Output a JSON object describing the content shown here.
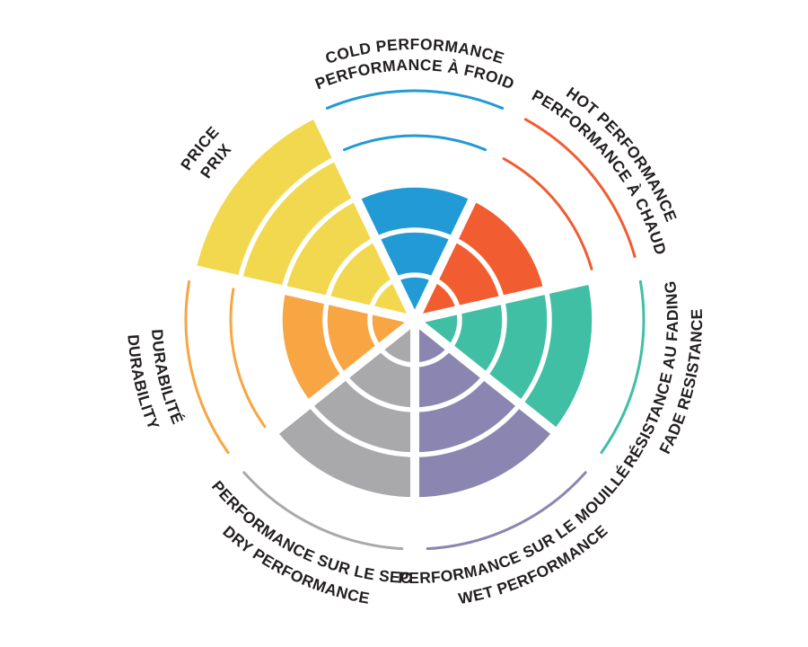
{
  "page": {
    "background": "#FFFFFF",
    "text_color": "#231F20"
  },
  "chart_data": {
    "type": "polar-sector-rating",
    "title": "",
    "rings": 5,
    "order": "clockwise-from-top",
    "grid": "white ring dividers and spokes over filled wedges; thin colored arcs mark unfilled rings",
    "legend_position": "labels curved around wheel, bilingual (English / French)",
    "sectors": [
      {
        "id": "cold",
        "label_en": "COLD PERFORMANCE",
        "label_fr": "PERFORMANCE À FROID",
        "value": 3,
        "max": 5,
        "color": "#229AD5",
        "label_style": "out"
      },
      {
        "id": "hot",
        "label_en": "HOT PERFORMANCE",
        "label_fr": "PERFORMANCE À CHAUD",
        "value": 3,
        "max": 5,
        "color": "#F15C30",
        "label_style": "out"
      },
      {
        "id": "fade",
        "label_en": "FADE RESISTANCE",
        "label_fr": "RÉSISTANCE AU FADING",
        "value": 4,
        "max": 5,
        "color": "#40BFA4",
        "label_style": "in"
      },
      {
        "id": "wet",
        "label_en": "WET PERFORMANCE",
        "label_fr": "PERFORMANCE SUR LE MOUILLÉ",
        "value": 4,
        "max": 5,
        "color": "#8B85B1",
        "label_style": "in"
      },
      {
        "id": "dry",
        "label_en": "DRY PERFORMANCE",
        "label_fr": "PERFORMANCE SUR LE SEC",
        "value": 4,
        "max": 5,
        "color": "#A9A9AC",
        "label_style": "in"
      },
      {
        "id": "durability",
        "label_en": "DURABILITY",
        "label_fr": "DURABILITÉ",
        "value": 3,
        "max": 5,
        "color": "#F8A643",
        "label_style": "in"
      },
      {
        "id": "price",
        "label_en": "PRICE",
        "label_fr": "PRIX",
        "value": 5,
        "max": 5,
        "color": "#F2D84E",
        "label_style": "out"
      }
    ]
  }
}
